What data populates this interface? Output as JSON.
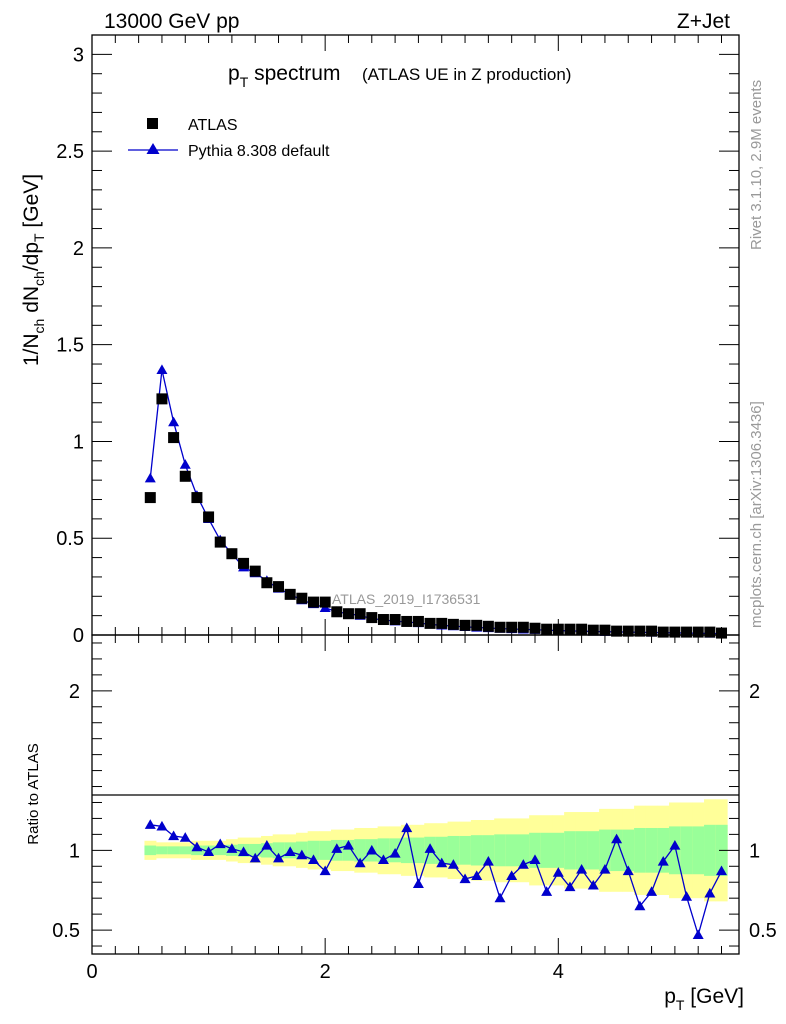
{
  "header": {
    "energy": "13000 GeV pp",
    "process": "Z+Jet",
    "title_main": "p",
    "title_sub": "T",
    "title_rest": " spectrum",
    "title_note": "(ATLAS UE in Z production)",
    "analysis_id": "ATLAS_2019_I1736531",
    "side_rivet": "Rivet 3.1.10,  2.9M events",
    "side_mcplots": "mcplots.cern.ch [arXiv:1306.3436]"
  },
  "legend": {
    "data_label": "ATLAS",
    "mc_label": "Pythia 8.308 default"
  },
  "colors": {
    "data": "#000000",
    "mc": "#0000cc",
    "band_inner": "#99ff99",
    "band_outer": "#ffff99"
  },
  "chart_data": [
    {
      "type": "scatter",
      "panel": "main",
      "ylabel": "1/N_ch dN_ch/dp_T [GeV]",
      "ylim": [
        0,
        3.1
      ],
      "yticks": [
        "0",
        "0.5",
        "1",
        "1.5",
        "2",
        "2.5",
        "3"
      ],
      "x": [
        0.5,
        0.6,
        0.7,
        0.8,
        0.9,
        1.0,
        1.1,
        1.2,
        1.3,
        1.4,
        1.5,
        1.6,
        1.7,
        1.8,
        1.9,
        2.0,
        2.1,
        2.2,
        2.3,
        2.4,
        2.5,
        2.6,
        2.7,
        2.8,
        2.9,
        3.0,
        3.1,
        3.2,
        3.3,
        3.4,
        3.5,
        3.6,
        3.7,
        3.8,
        3.9,
        4.0,
        4.1,
        4.2,
        4.3,
        4.4,
        4.5,
        4.6,
        4.7,
        4.8,
        4.9,
        5.0,
        5.1,
        5.2,
        5.3,
        5.4
      ],
      "series": [
        {
          "name": "ATLAS",
          "values": [
            0.71,
            1.22,
            1.02,
            0.82,
            0.71,
            0.61,
            0.48,
            0.42,
            0.37,
            0.33,
            0.27,
            0.25,
            0.21,
            0.19,
            0.17,
            0.17,
            0.12,
            0.11,
            0.11,
            0.09,
            0.08,
            0.08,
            0.07,
            0.07,
            0.06,
            0.06,
            0.055,
            0.05,
            0.05,
            0.045,
            0.04,
            0.04,
            0.04,
            0.035,
            0.03,
            0.03,
            0.03,
            0.03,
            0.025,
            0.025,
            0.02,
            0.02,
            0.02,
            0.02,
            0.015,
            0.015,
            0.015,
            0.015,
            0.015,
            0.01
          ]
        },
        {
          "name": "Pythia 8.308 default",
          "values": [
            0.81,
            1.37,
            1.1,
            0.88,
            0.72,
            0.6,
            0.49,
            0.42,
            0.35,
            0.32,
            0.28,
            0.24,
            0.21,
            0.18,
            0.16,
            0.14,
            0.12,
            0.11,
            0.1,
            0.085,
            0.078,
            0.071,
            0.068,
            0.062,
            0.055,
            0.05,
            0.046,
            0.042,
            0.039,
            0.036,
            0.033,
            0.031,
            0.029,
            0.027,
            0.025,
            0.023,
            0.021,
            0.02,
            0.018,
            0.017,
            0.016,
            0.015,
            0.014,
            0.013,
            0.012,
            0.011,
            0.01,
            0.009,
            0.008,
            0.007
          ]
        }
      ]
    },
    {
      "type": "line",
      "panel": "ratio",
      "xlabel": "p_T [GeV]",
      "ylabel": "Ratio to ATLAS",
      "xlim": [
        0,
        5.55
      ],
      "xticks": [
        "0",
        "2",
        "4"
      ],
      "ylim": [
        0.35,
        2.35
      ],
      "yticks": [
        "0.5",
        "1",
        "2"
      ],
      "bin_edges": [
        0.45,
        0.55,
        0.65,
        0.75,
        0.85,
        0.95,
        1.05,
        1.15,
        1.25,
        1.35,
        1.45,
        1.55,
        1.65,
        1.75,
        1.85,
        1.95,
        2.05,
        2.15,
        2.25,
        2.35,
        2.45,
        2.55,
        2.65,
        2.75,
        2.85,
        2.95,
        3.05,
        3.15,
        3.25,
        3.35,
        3.45,
        3.55,
        3.65,
        3.75,
        3.85,
        3.95,
        4.05,
        4.15,
        4.25,
        4.35,
        4.45,
        4.55,
        4.65,
        4.75,
        4.85,
        4.95,
        5.05,
        5.15,
        5.25,
        5.35,
        5.45
      ],
      "band_inner_halfwidth": [
        0.03,
        0.025,
        0.025,
        0.025,
        0.03,
        0.03,
        0.03,
        0.035,
        0.04,
        0.04,
        0.045,
        0.05,
        0.05,
        0.055,
        0.06,
        0.06,
        0.065,
        0.065,
        0.07,
        0.07,
        0.075,
        0.075,
        0.08,
        0.08,
        0.085,
        0.085,
        0.09,
        0.09,
        0.095,
        0.095,
        0.1,
        0.1,
        0.1,
        0.11,
        0.11,
        0.11,
        0.12,
        0.12,
        0.12,
        0.13,
        0.13,
        0.13,
        0.14,
        0.14,
        0.14,
        0.15,
        0.15,
        0.15,
        0.16,
        0.16
      ],
      "band_outer_halfwidth": [
        0.06,
        0.05,
        0.05,
        0.05,
        0.06,
        0.06,
        0.06,
        0.07,
        0.08,
        0.08,
        0.09,
        0.1,
        0.1,
        0.11,
        0.12,
        0.12,
        0.13,
        0.13,
        0.14,
        0.14,
        0.15,
        0.15,
        0.16,
        0.16,
        0.17,
        0.17,
        0.18,
        0.18,
        0.19,
        0.19,
        0.2,
        0.2,
        0.2,
        0.22,
        0.22,
        0.22,
        0.24,
        0.24,
        0.24,
        0.26,
        0.26,
        0.26,
        0.28,
        0.28,
        0.28,
        0.3,
        0.3,
        0.3,
        0.32,
        0.32
      ],
      "series": [
        {
          "name": "Pythia 8.308 default",
          "values": [
            1.16,
            1.15,
            1.09,
            1.08,
            1.02,
            0.99,
            1.04,
            1.01,
            0.99,
            0.95,
            1.03,
            0.95,
            0.99,
            0.97,
            0.94,
            0.87,
            1.01,
            1.03,
            0.92,
            1.0,
            0.94,
            0.98,
            1.14,
            0.79,
            1.01,
            0.92,
            0.91,
            0.82,
            0.84,
            0.93,
            0.7,
            0.84,
            0.91,
            0.94,
            0.74,
            0.86,
            0.77,
            0.88,
            0.78,
            0.88,
            1.07,
            0.87,
            0.65,
            0.74,
            0.93,
            1.03,
            0.71,
            0.47,
            0.73,
            0.87
          ]
        }
      ]
    }
  ]
}
